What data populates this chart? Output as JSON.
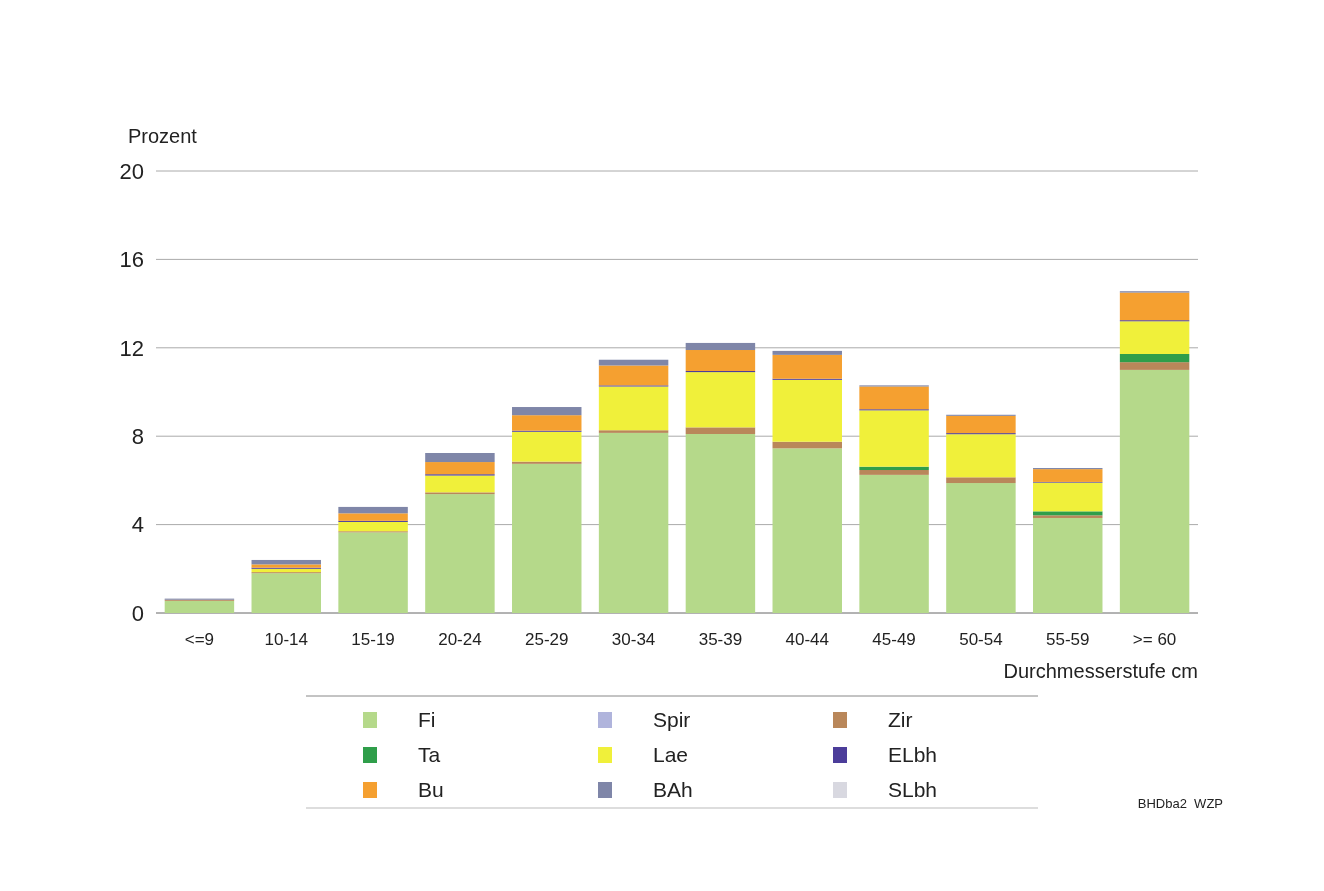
{
  "chart_data": {
    "type": "bar",
    "stacked": true,
    "ylabel": "Prozent",
    "xlabel": "Durchmesserstufe cm",
    "categories": [
      "<=9",
      "10-14",
      "15-19",
      "20-24",
      "25-29",
      "30-34",
      "35-39",
      "40-44",
      "45-49",
      "50-54",
      "55-59",
      ">= 60"
    ],
    "ylim": [
      0,
      20
    ],
    "yticks": [
      0,
      4,
      8,
      12,
      16,
      20
    ],
    "grid": "y",
    "legend": "bottom",
    "annotations": [
      "BHDba2  WZP"
    ],
    "series": [
      {
        "name": "Fi",
        "color": "#b5d98a",
        "values": [
          0.55,
          1.8,
          3.65,
          5.38,
          6.75,
          8.15,
          8.1,
          7.45,
          6.25,
          5.88,
          4.3,
          11.0
        ]
      },
      {
        "name": "Spir",
        "color": "#b0b4dc",
        "values": [
          0,
          0,
          0,
          0,
          0,
          0,
          0,
          0,
          0,
          0,
          0,
          0
        ]
      },
      {
        "name": "Zir",
        "color": "#b9875a",
        "values": [
          0.05,
          0.05,
          0.05,
          0.08,
          0.1,
          0.12,
          0.3,
          0.3,
          0.22,
          0.26,
          0.12,
          0.35
        ]
      },
      {
        "name": "Ta",
        "color": "#2f9e4a",
        "values": [
          0,
          0,
          0,
          0,
          0,
          0,
          0,
          0,
          0.15,
          0,
          0.18,
          0.37
        ]
      },
      {
        "name": "Lae",
        "color": "#f0f03a",
        "values": [
          0,
          0.15,
          0.42,
          0.76,
          1.35,
          1.98,
          2.5,
          2.8,
          2.55,
          1.95,
          1.3,
          1.48
        ]
      },
      {
        "name": "ELbh",
        "color": "#4c3d9a",
        "values": [
          0,
          0.05,
          0.05,
          0.06,
          0.05,
          0.05,
          0.05,
          0.05,
          0.05,
          0.05,
          0.03,
          0.05
        ]
      },
      {
        "name": "Bu",
        "color": "#f5a030",
        "values": [
          0,
          0.15,
          0.34,
          0.55,
          0.7,
          0.9,
          0.95,
          1.08,
          1.03,
          0.78,
          0.58,
          1.25
        ]
      },
      {
        "name": "BAh",
        "color": "#7f86a8",
        "values": [
          0.05,
          0.2,
          0.29,
          0.41,
          0.37,
          0.26,
          0.32,
          0.18,
          0.05,
          0.05,
          0.05,
          0.06
        ]
      },
      {
        "name": "SLbh",
        "color": "#d8d8e0",
        "values": [
          0,
          0,
          0,
          0,
          0,
          0,
          0,
          0,
          0,
          0,
          0,
          0
        ]
      }
    ]
  }
}
